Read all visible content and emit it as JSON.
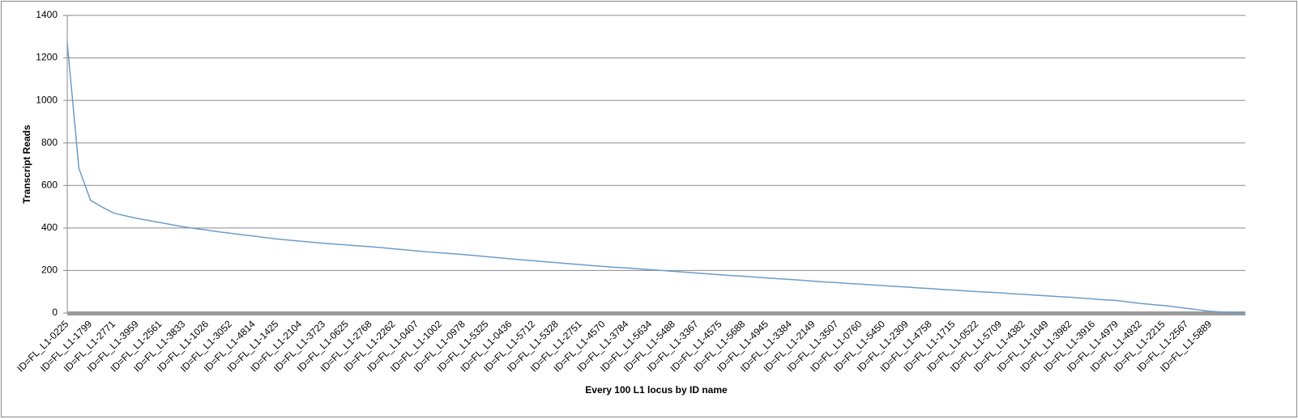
{
  "chart_data": {
    "type": "line",
    "x_label": "Every 100 L1 locus by ID name",
    "y_label": "Transcript Reads",
    "categories": [
      "ID=FL_L1-0225",
      null,
      "ID=FL_L1-1799",
      null,
      "ID=FL_L1-2771",
      null,
      "ID=FL_L1-3959",
      null,
      "ID=FL_L1-2561",
      null,
      "ID=FL_L1-3833",
      null,
      "ID=FL_L1-1026",
      null,
      "ID=FL_L1-3052",
      null,
      "ID=FL_L1-4814",
      null,
      "ID=FL_L1-1425",
      null,
      "ID=FL_L1-2104",
      null,
      "ID=FL_L1-3723",
      null,
      "ID=FL_L1-0625",
      null,
      "ID=FL_L1-2768",
      null,
      "ID=FL_L1-2262",
      null,
      "ID=FL_L1-0407",
      null,
      "ID=FL_L1-1002",
      null,
      "ID=FL_L1-0978",
      null,
      "ID=FL_L1-5325",
      null,
      "ID=FL_L1-0436",
      null,
      "ID=FL_L1-5712",
      null,
      "ID=FL_L1-5328",
      null,
      "ID=FL_L1-2751",
      null,
      "ID=FL_L1-4570",
      null,
      "ID=FL_L1-3784",
      null,
      "ID=FL_L1-5634",
      null,
      "ID=FL_L1-5488",
      null,
      "ID=FL_L1-3367",
      null,
      "ID=FL_L1-4575",
      null,
      "ID=FL_L1-5688",
      null,
      "ID=FL_L1-4945",
      null,
      "ID=FL_L1-3384",
      null,
      "ID=FL_L1-2149",
      null,
      "ID=FL_L1-3507",
      null,
      "ID=FL_L1-0760",
      null,
      "ID=FL_L1-5450",
      null,
      "ID=FL_L1-2309",
      null,
      "ID=FL_L1-4758",
      null,
      "ID=FL_L1-1715",
      null,
      "ID=FL_L1-0522",
      null,
      "ID=FL_L1-5709",
      null,
      "ID=FL_L1-4382",
      null,
      "ID=FL_L1-1049",
      null,
      "ID=FL_L1-3982",
      null,
      "ID=FL_L1-3916",
      null,
      "ID=FL_L1-4979",
      null,
      "ID=FL_L1-4932",
      null,
      "ID=FL_L1-2215",
      null,
      "ID=FL_L1-2567",
      null,
      "ID=FL_L1-5889",
      null,
      null,
      null
    ],
    "values": [
      1270,
      680,
      530,
      498,
      470,
      457,
      445,
      435,
      425,
      415,
      405,
      397,
      390,
      382,
      375,
      368,
      362,
      355,
      348,
      343,
      338,
      333,
      328,
      324,
      320,
      316,
      312,
      307,
      302,
      297,
      292,
      287,
      283,
      279,
      275,
      270,
      265,
      260,
      255,
      250,
      246,
      241,
      237,
      232,
      228,
      223,
      219,
      215,
      212,
      208,
      204,
      200,
      196,
      192,
      188,
      184,
      180,
      176,
      173,
      169,
      165,
      161,
      158,
      154,
      150,
      146,
      143,
      139,
      136,
      132,
      129,
      125,
      122,
      118,
      115,
      111,
      108,
      104,
      101,
      98,
      95,
      91,
      88,
      84,
      81,
      77,
      74,
      70,
      66,
      62,
      59,
      52,
      45,
      40,
      35,
      29,
      22,
      15,
      8,
      5,
      3,
      2
    ],
    "color": "#6d9cc6",
    "ylim": [
      0,
      1400
    ],
    "yticks": [
      0,
      200,
      400,
      600,
      800,
      1000,
      1200,
      1400
    ],
    "grid": true
  }
}
